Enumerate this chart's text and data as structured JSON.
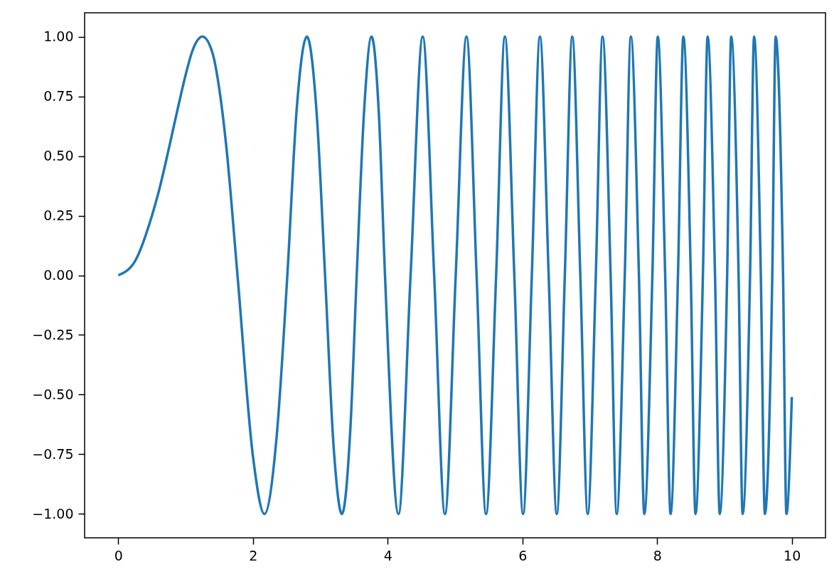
{
  "chart_data": {
    "type": "line",
    "x": [
      0,
      0.25,
      0.5,
      0.6,
      0.75,
      0.9,
      1.0,
      1.1,
      1.25,
      1.4,
      1.5,
      1.6,
      1.77,
      2.0,
      2.17,
      2.35,
      2.51,
      2.65,
      2.8,
      2.95,
      3.07,
      3.2,
      3.32,
      3.45,
      3.54,
      3.65,
      3.76,
      3.87,
      3.96,
      4.16,
      4.34,
      4.52,
      4.69,
      4.85,
      5.01,
      5.17,
      5.32,
      5.46,
      5.61,
      5.74,
      5.88,
      6.01,
      6.14,
      6.26,
      6.39,
      6.51,
      6.63,
      6.74,
      6.86,
      6.97,
      7.09,
      7.19,
      7.31,
      7.4,
      7.52,
      7.61,
      7.73,
      7.81,
      7.93,
      8.01,
      8.12,
      8.2,
      8.31,
      8.39,
      8.5,
      8.57,
      8.68,
      8.75,
      8.86,
      8.93,
      9.04,
      9.1,
      9.21,
      9.27,
      9.38,
      9.44,
      9.54,
      9.6,
      9.71,
      9.76,
      9.87,
      9.92,
      10.0
    ],
    "series": [
      {
        "color": "#1f77b4",
        "line_style": "solid",
        "values": [
          0,
          0.06,
          0.25,
          0.35,
          0.53,
          0.72,
          0.84,
          0.94,
          1.0,
          0.93,
          0.78,
          0.55,
          0.0,
          -0.76,
          -1.0,
          -0.68,
          0.0,
          0.7,
          1.0,
          0.66,
          0.0,
          -0.73,
          -1.0,
          -0.62,
          0.0,
          0.69,
          1.0,
          0.67,
          0.0,
          -1.0,
          0.0,
          1.0,
          0.0,
          -1.0,
          0.0,
          1.0,
          0.0,
          -1.0,
          0.0,
          1.0,
          0.0,
          -1.0,
          0.0,
          1.0,
          0.0,
          -1.0,
          0.0,
          1.0,
          0.0,
          -1.0,
          0.0,
          1.0,
          0.0,
          -1.0,
          0.0,
          1.0,
          0.0,
          -1.0,
          0.0,
          1.0,
          0.0,
          -1.0,
          0.0,
          1.0,
          0.0,
          -1.0,
          0.0,
          1.0,
          0.0,
          -1.0,
          0.0,
          1.0,
          0.0,
          -1.0,
          0.0,
          1.0,
          0.0,
          -1.0,
          0.0,
          1.0,
          0.0,
          -1.0,
          -0.51
        ]
      }
    ],
    "xlim": [
      -0.5,
      10.5
    ],
    "ylim": [
      -1.1,
      1.1
    ],
    "xticks": [
      0,
      2,
      4,
      6,
      8,
      10
    ],
    "yticks": [
      {
        "value": -1.0,
        "label": "−1.00"
      },
      {
        "value": -0.75,
        "label": "−0.75"
      },
      {
        "value": -0.5,
        "label": "−0.50"
      },
      {
        "value": -0.25,
        "label": "−0.25"
      },
      {
        "value": 0.0,
        "label": "0.00"
      },
      {
        "value": 0.25,
        "label": "0.25"
      },
      {
        "value": 0.5,
        "label": "0.50"
      },
      {
        "value": 0.75,
        "label": "0.75"
      },
      {
        "value": 1.0,
        "label": "1.00"
      }
    ]
  }
}
